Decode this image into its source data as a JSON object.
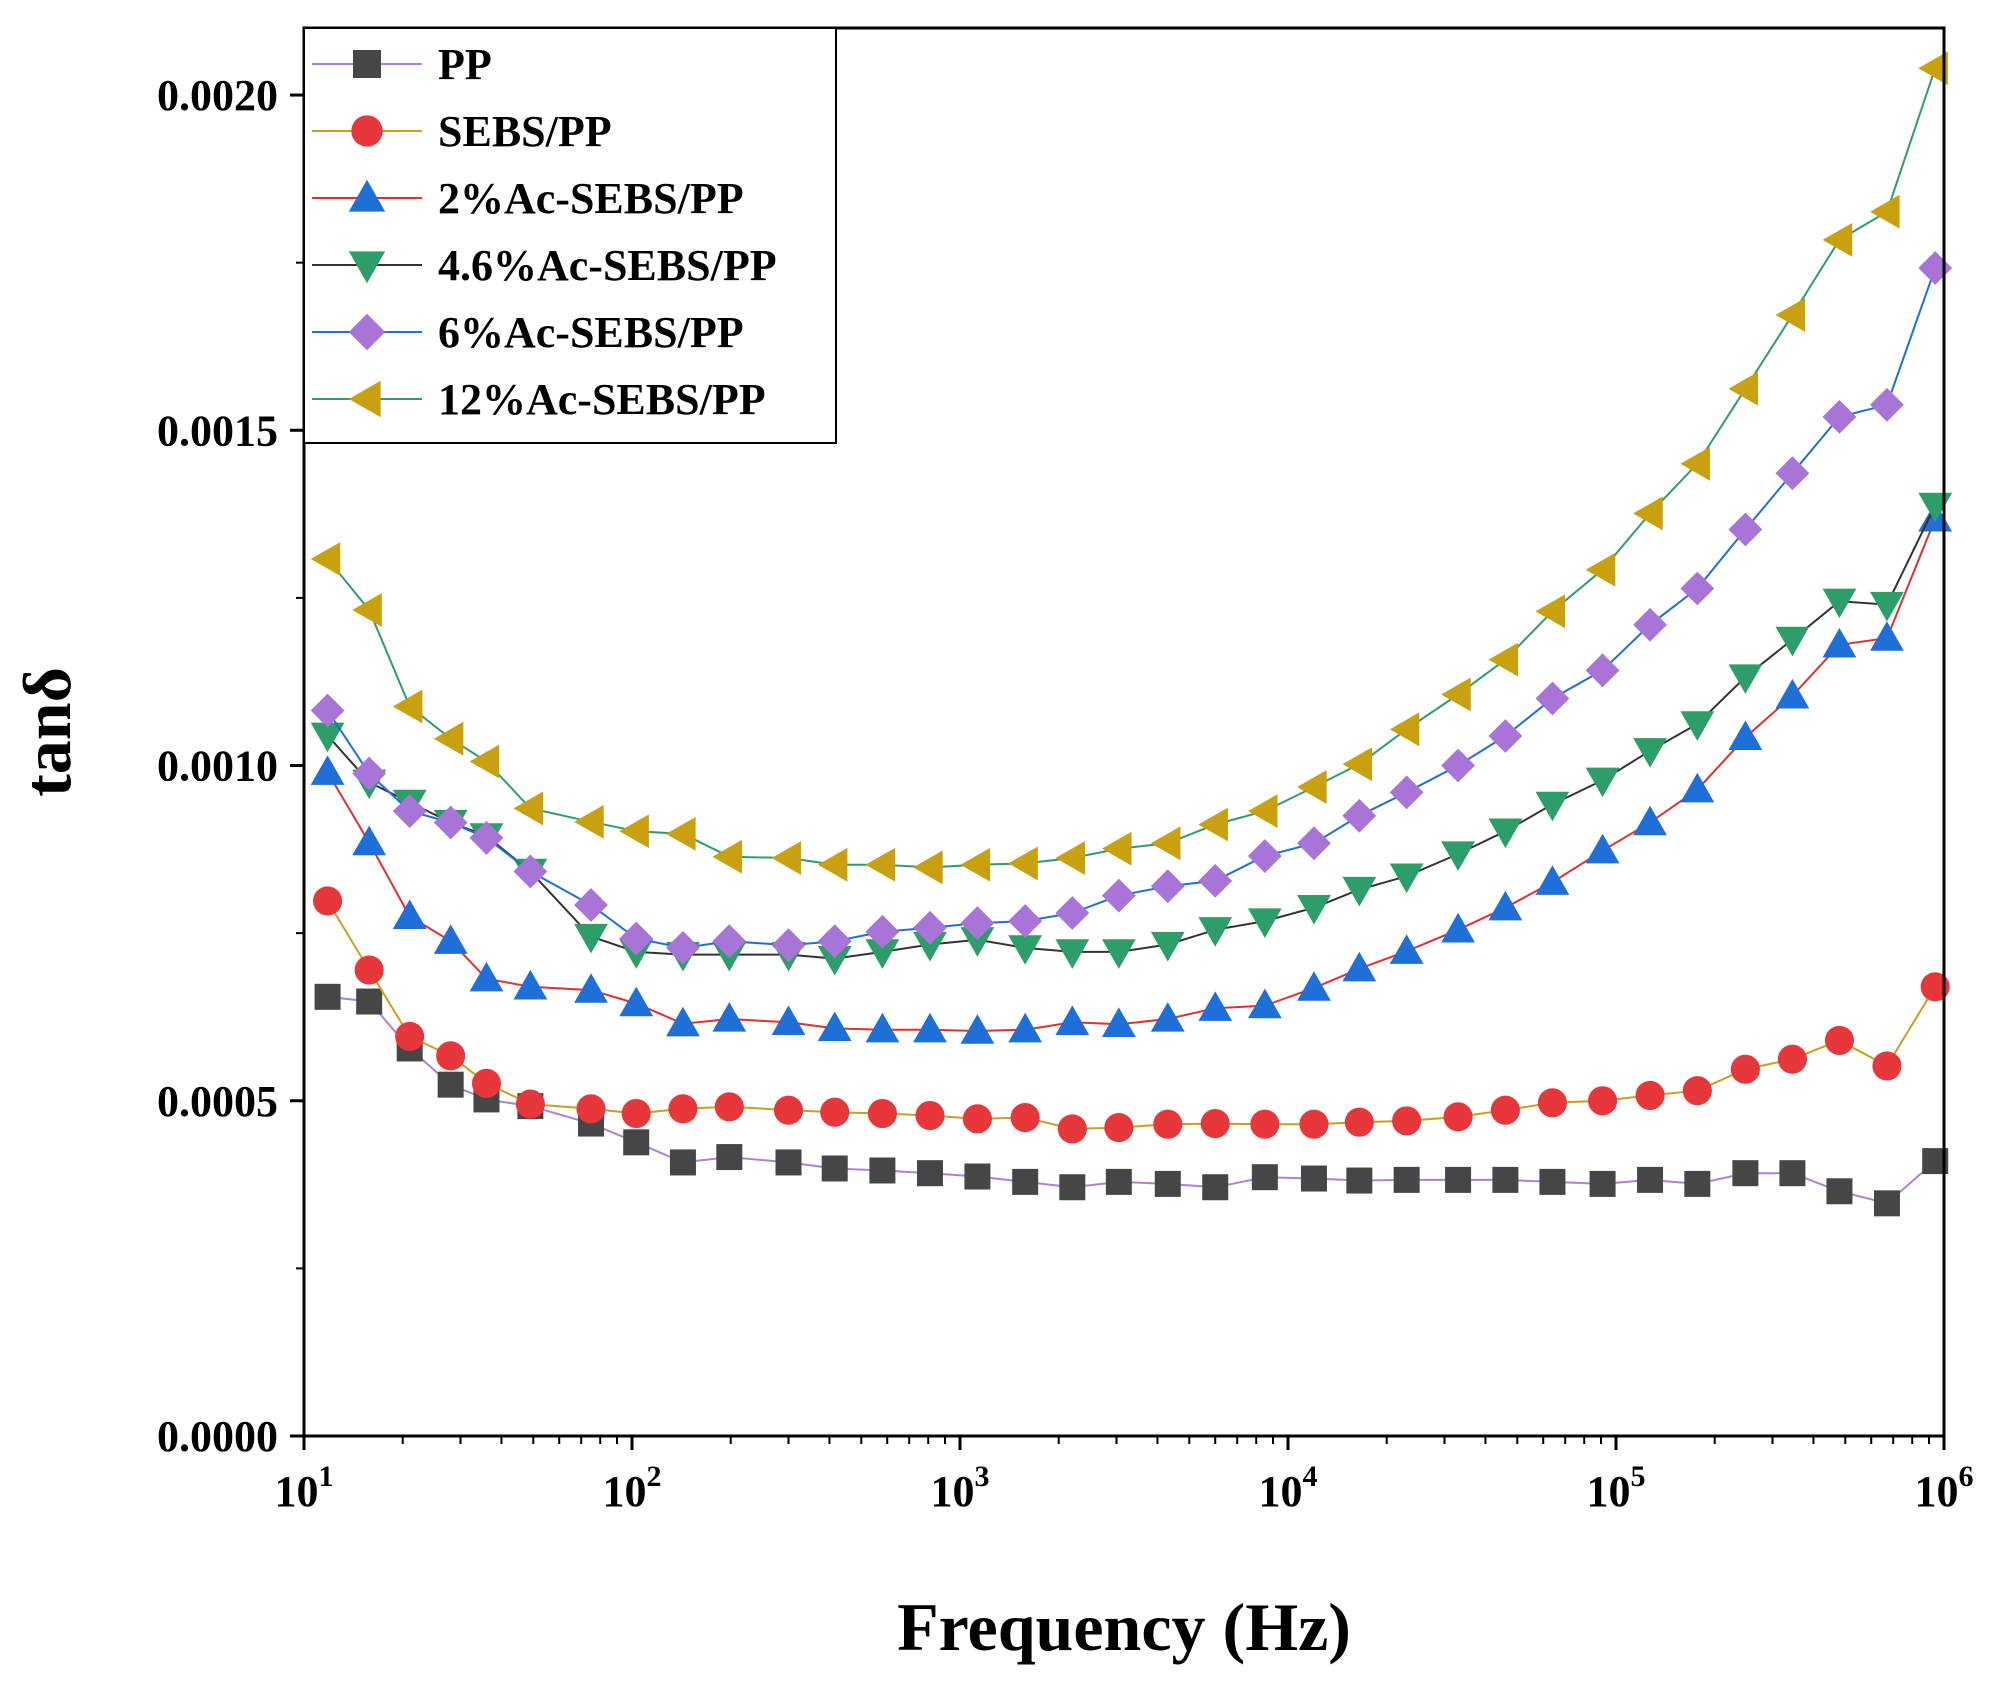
{
  "chart_data": {
    "type": "line",
    "title": "",
    "xlabel": "Frequency (Hz)",
    "ylabel": "tanδ",
    "xscale": "log",
    "xlim": [
      10,
      1000000
    ],
    "ylim": [
      0,
      0.0021
    ],
    "xticks": [
      {
        "value": 10,
        "base": "10",
        "exp": "1"
      },
      {
        "value": 100,
        "base": "10",
        "exp": "2"
      },
      {
        "value": 1000,
        "base": "10",
        "exp": "3"
      },
      {
        "value": 10000,
        "base": "10",
        "exp": "4"
      },
      {
        "value": 100000,
        "base": "10",
        "exp": "5"
      },
      {
        "value": 1000000,
        "base": "10",
        "exp": "6"
      }
    ],
    "yticks": [
      {
        "value": 0,
        "label": "0.0000"
      },
      {
        "value": 0.0005,
        "label": "0.0005"
      },
      {
        "value": 0.001,
        "label": "0.0010"
      },
      {
        "value": 0.0015,
        "label": "0.0015"
      },
      {
        "value": 0.002,
        "label": "0.0020"
      }
    ],
    "legend_position": "top-left",
    "x": [
      11.8,
      15.8,
      21.0,
      28.0,
      36.0,
      49.0,
      75,
      103,
      143,
      198,
      300,
      415,
      580,
      810,
      1130,
      1580,
      2200,
      3050,
      4300,
      6000,
      8500,
      12000,
      16500,
      23000,
      33000,
      46000,
      64000,
      91000,
      127000,
      177000,
      248000,
      345000,
      480000,
      670000,
      940000
    ],
    "series": [
      {
        "name": "PP",
        "marker": "square",
        "marker_color": "#464646",
        "line_color": "#b07fd8",
        "values": [
          0.000655,
          0.000648,
          0.000578,
          0.000524,
          0.000502,
          0.000492,
          0.000466,
          0.000438,
          0.000408,
          0.000416,
          0.000408,
          0.000399,
          0.000396,
          0.000392,
          0.000387,
          0.000379,
          0.000371,
          0.000379,
          0.000376,
          0.000371,
          0.000386,
          0.000384,
          0.000381,
          0.000382,
          0.000382,
          0.000382,
          0.000379,
          0.000376,
          0.000382,
          0.000376,
          0.000392,
          0.000392,
          0.000365,
          0.000347,
          0.00041
        ]
      },
      {
        "name": "SEBS/PP",
        "marker": "circle",
        "marker_color": "#e8373a",
        "line_color": "#c8a020",
        "values": [
          0.000798,
          0.000695,
          0.000596,
          0.000567,
          0.000526,
          0.000495,
          0.000488,
          0.000481,
          0.000488,
          0.000491,
          0.000486,
          0.000483,
          0.000481,
          0.000478,
          0.000473,
          0.000475,
          0.000458,
          0.00046,
          0.000465,
          0.000466,
          0.000465,
          0.000465,
          0.000468,
          0.00047,
          0.000476,
          0.000486,
          0.000497,
          0.0005,
          0.000508,
          0.000515,
          0.000547,
          0.000562,
          0.00059,
          0.000552,
          0.00067
        ]
      },
      {
        "name": "2%Ac-SEBS/PP",
        "marker": "triangle-up",
        "marker_color": "#1f6fd8",
        "line_color": "#e03030",
        "values": [
          0.00099,
          0.000885,
          0.000775,
          0.000738,
          0.000682,
          0.00067,
          0.000665,
          0.000645,
          0.000615,
          0.000622,
          0.000617,
          0.000608,
          0.000606,
          0.000606,
          0.000604,
          0.000606,
          0.000617,
          0.000614,
          0.000622,
          0.000638,
          0.000642,
          0.000668,
          0.000697,
          0.000723,
          0.000755,
          0.000788,
          0.000826,
          0.000873,
          0.000915,
          0.000964,
          0.001042,
          0.001104,
          0.00118,
          0.00119,
          0.001368
        ]
      },
      {
        "name": "4.6%Ac-SEBS/PP",
        "marker": "triangle-down",
        "marker_color": "#2e9e68",
        "line_color": "#333333",
        "values": [
          0.001045,
          0.000975,
          0.000945,
          0.000915,
          0.000895,
          0.000842,
          0.000745,
          0.000722,
          0.000718,
          0.000718,
          0.000718,
          0.000712,
          0.000722,
          0.000733,
          0.00074,
          0.000728,
          0.000722,
          0.000722,
          0.000733,
          0.000755,
          0.000768,
          0.000788,
          0.000815,
          0.000835,
          0.000868,
          0.000902,
          0.000942,
          0.000978,
          0.001022,
          0.001062,
          0.001132,
          0.001188,
          0.001245,
          0.00124,
          0.001388
        ]
      },
      {
        "name": "6%Ac-SEBS/PP",
        "marker": "diamond",
        "marker_color": "#a874d8",
        "line_color": "#1f6fd8",
        "values": [
          0.001082,
          0.000988,
          0.000932,
          0.000915,
          0.000892,
          0.000842,
          0.000792,
          0.000742,
          0.000728,
          0.000738,
          0.000732,
          0.000738,
          0.000752,
          0.000758,
          0.000765,
          0.000768,
          0.00078,
          0.000806,
          0.00082,
          0.000828,
          0.000865,
          0.000884,
          0.000925,
          0.00096,
          0.001,
          0.001044,
          0.0011,
          0.001142,
          0.00121,
          0.001264,
          0.001352,
          0.001436,
          0.00152,
          0.001538,
          0.001742
        ]
      },
      {
        "name": "12%Ac-SEBS/PP",
        "marker": "triangle-left",
        "marker_color": "#c9a010",
        "line_color": "#2e9e68",
        "values": [
          0.001308,
          0.001232,
          0.001088,
          0.00104,
          0.001006,
          0.000936,
          0.000916,
          0.000902,
          0.000898,
          0.000864,
          0.000862,
          0.000852,
          0.000852,
          0.000848,
          0.000852,
          0.000854,
          0.000862,
          0.000876,
          0.000884,
          0.000912,
          0.000932,
          0.000968,
          0.001002,
          0.001054,
          0.001106,
          0.001158,
          0.00123,
          0.001292,
          0.001376,
          0.00145,
          0.001562,
          0.001672,
          0.001784,
          0.001826,
          0.00204
        ]
      }
    ]
  }
}
